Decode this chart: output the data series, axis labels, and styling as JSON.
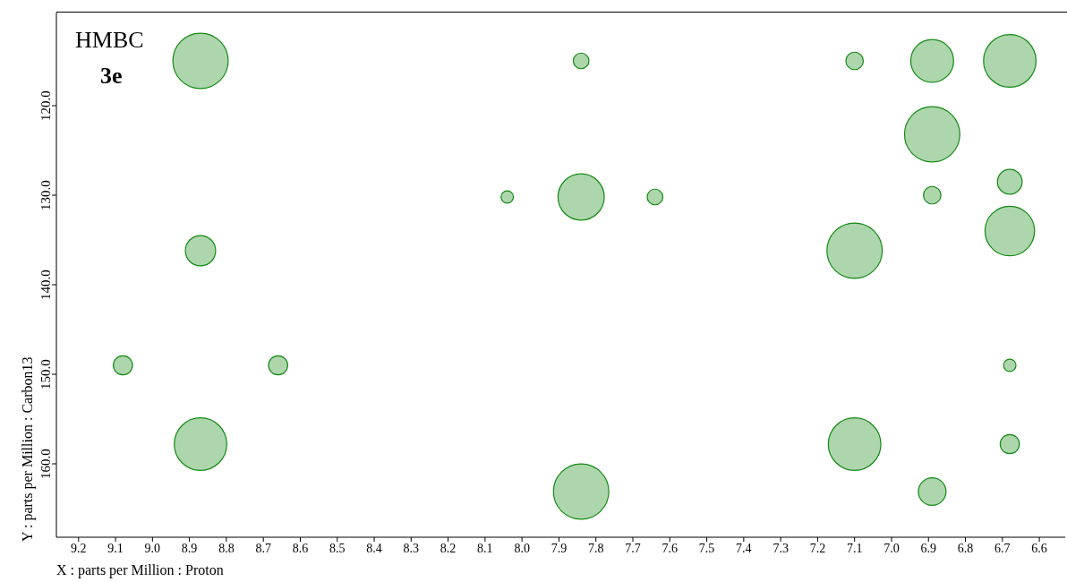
{
  "chart_data": {
    "type": "bubble",
    "xlabel": "X : parts per Million : Proton",
    "ylabel": "Y : parts per Million : Carbon13",
    "annotations": [
      "HMBC",
      "3e"
    ],
    "x": [
      8.87,
      8.87,
      8.87,
      9.08,
      8.66,
      8.04,
      7.84,
      7.84,
      7.84,
      7.64,
      7.1,
      7.1,
      7.1,
      6.89,
      6.89,
      6.89,
      6.89,
      6.68,
      6.68,
      6.68,
      6.68,
      6.68
    ],
    "series": [
      {
        "color": "#138a13",
        "values": [
          115.0,
          136.2,
          157.8,
          149.0,
          149.0,
          130.2,
          115.0,
          130.2,
          163.1,
          130.2,
          115.0,
          136.2,
          157.8,
          115.0,
          123.2,
          130.0,
          163.1,
          115.0,
          128.5,
          134.0,
          149.0,
          157.8
        ],
        "sizes": [
          1,
          0.3,
          0.9,
          0.12,
          0.12,
          0.05,
          0.08,
          0.7,
          1,
          0.08,
          0.1,
          1,
          0.9,
          0.6,
          1,
          0.1,
          0.25,
          0.9,
          0.2,
          0.8,
          0.05,
          0.12
        ]
      }
    ],
    "xlim": [
      9.26,
      6.53
    ],
    "xticks": [
      9.2,
      9.1,
      {
        "value": 9,
        "label": "9.0"
      },
      8.9,
      8.8,
      8.7,
      8.6,
      8.5,
      8.4,
      8.3,
      8.2,
      8.1,
      {
        "value": 8,
        "label": "8.0"
      },
      7.9,
      7.8,
      7.7,
      7.6,
      7.5,
      7.4,
      7.3,
      7.2,
      7.1,
      {
        "value": 7,
        "label": "7.0"
      },
      6.9,
      6.8,
      6.7,
      6.6
    ],
    "ylim": [
      168.2,
      109.6
    ],
    "yticks": [
      {
        "value": 120,
        "label": "120.0"
      },
      {
        "value": 130,
        "label": "130.0"
      },
      {
        "value": 140,
        "label": "140.0"
      },
      {
        "value": 150,
        "label": "150.0"
      },
      {
        "value": 160,
        "label": "160.0"
      }
    ],
    "grid": false,
    "legend": false
  }
}
